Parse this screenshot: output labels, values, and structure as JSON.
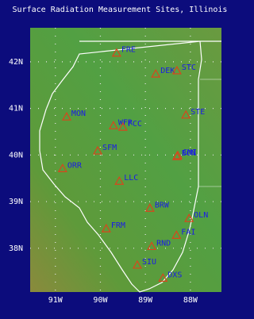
{
  "chart_data": {
    "type": "map",
    "title": "Surface Radiation Measurement Sites, Illinois",
    "xlim": [
      -91.56,
      -87.31
    ],
    "ylim": [
      37.06,
      42.73
    ],
    "xticks": [
      {
        "value": -91,
        "label": "91W"
      },
      {
        "value": -90,
        "label": "90W"
      },
      {
        "value": -89,
        "label": "89W"
      },
      {
        "value": -88,
        "label": "88W"
      }
    ],
    "yticks": [
      {
        "value": 38,
        "label": "38N"
      },
      {
        "value": 39,
        "label": "39N"
      },
      {
        "value": 40,
        "label": "40N"
      },
      {
        "value": 41,
        "label": "41N"
      },
      {
        "value": 42,
        "label": "42N"
      }
    ],
    "grid": true,
    "marker_color": "#d8461c",
    "label_color": "#1a1ae8",
    "stations": [
      {
        "label": "FRE",
        "lon": -89.64,
        "lat": 42.19
      },
      {
        "label": "DEK",
        "lon": -88.77,
        "lat": 41.74
      },
      {
        "label": "STC",
        "lon": -88.3,
        "lat": 41.81
      },
      {
        "label": "MON",
        "lon": -90.75,
        "lat": 40.82
      },
      {
        "label": "STE",
        "lon": -88.1,
        "lat": 40.86
      },
      {
        "label": "WFR",
        "lon": -89.71,
        "lat": 40.63
      },
      {
        "label": "FCC",
        "lon": -89.5,
        "lat": 40.6
      },
      {
        "label": "SFM",
        "lon": -90.06,
        "lat": 40.09
      },
      {
        "label": "BON",
        "lon": -88.3,
        "lat": 39.97
      },
      {
        "label": "CMI",
        "lon": -88.28,
        "lat": 39.99
      },
      {
        "label": "ORR",
        "lon": -90.84,
        "lat": 39.71
      },
      {
        "label": "LLC",
        "lon": -89.58,
        "lat": 39.44
      },
      {
        "label": "BRW",
        "lon": -88.9,
        "lat": 38.86
      },
      {
        "label": "OLN",
        "lon": -88.03,
        "lat": 38.64
      },
      {
        "label": "FRM",
        "lon": -89.87,
        "lat": 38.42
      },
      {
        "label": "FAI",
        "lon": -88.31,
        "lat": 38.28
      },
      {
        "label": "RND",
        "lon": -88.86,
        "lat": 38.04
      },
      {
        "label": "SIU",
        "lon": -89.18,
        "lat": 37.64
      },
      {
        "label": "DXS",
        "lon": -88.61,
        "lat": 37.36
      }
    ]
  }
}
